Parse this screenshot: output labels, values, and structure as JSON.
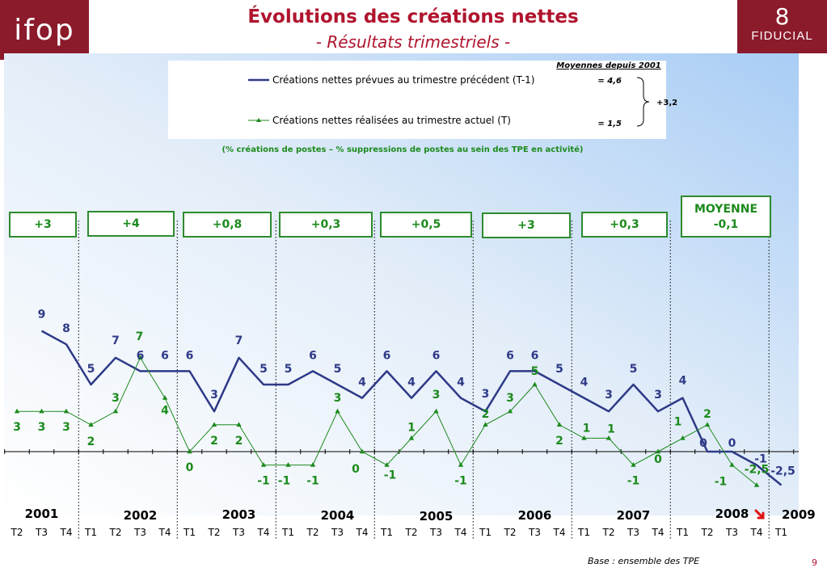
{
  "logos": {
    "left": "ifop",
    "right_mark": "8",
    "right_name": "FIDUCIAL"
  },
  "title": "Évolutions des créations nettes",
  "subtitle": "- Résultats trimestriels -",
  "footer": "Base : ensemble des TPE",
  "page_number": "9",
  "colors": {
    "brand": "#8b1a2b",
    "title": "#b0142d",
    "prevues": "#2e3a87",
    "realisees": "#1c8a1c",
    "box_border": "#2e8b2e"
  },
  "legend": {
    "header": "Moyennes depuis 2001",
    "entries": [
      {
        "label": "Créations nettes prévues au trimestre précédent (T-1)",
        "avg": "= 4,6"
      },
      {
        "label": "Créations nettes réalisées au trimestre actuel (T)",
        "avg": "= 1,5"
      }
    ],
    "diff": "+3,2"
  },
  "note": "(% créations de postes  – % suppressions de postes au sein des TPE en activité)",
  "chart_data": {
    "type": "line",
    "x": [
      "T2",
      "T3",
      "T4",
      "T1",
      "T2",
      "T3",
      "T4",
      "T1",
      "T2",
      "T3",
      "T4",
      "T1",
      "T2",
      "T3",
      "T4",
      "T1",
      "T2",
      "T3",
      "T4",
      "T1",
      "T2",
      "T3",
      "T4",
      "T1",
      "T2",
      "T3",
      "T4",
      "T1",
      "T2",
      "T3",
      "T4",
      "T1"
    ],
    "years": [
      "2001",
      "2002",
      "2003",
      "2004",
      "2005",
      "2006",
      "2007",
      "2008",
      "2009"
    ],
    "series": [
      {
        "name": "Créations nettes prévues au trimestre précédent (T-1)",
        "values": [
          null,
          9,
          8,
          5,
          7,
          6,
          6,
          6,
          3,
          7,
          5,
          5,
          6,
          5,
          4,
          6,
          4,
          6,
          4,
          3,
          6,
          6,
          5,
          4,
          3,
          5,
          3,
          4,
          0,
          0,
          -1,
          -2.5
        ],
        "labels": [
          "",
          "9",
          "8",
          "5",
          "7",
          "6",
          "6",
          "6",
          "3",
          "7",
          "5",
          "5",
          "6",
          "5",
          "4",
          "6",
          "4",
          "6",
          "4",
          "3",
          "6",
          "6",
          "5",
          "4",
          "3",
          "5",
          "3",
          "4",
          "0",
          "0",
          "-1",
          "-2,5"
        ]
      },
      {
        "name": "Créations nettes réalisées au trimestre actuel (T)",
        "values": [
          3,
          3,
          3,
          2,
          3,
          7,
          4,
          0,
          2,
          2,
          -1,
          -1,
          -1,
          3,
          0,
          -1,
          1,
          3,
          -1,
          2,
          3,
          5,
          2,
          1,
          1,
          -1,
          0,
          1,
          2,
          -1,
          -2.5,
          null
        ],
        "labels": [
          "3",
          "3",
          "3",
          "2",
          "3",
          "7",
          "4",
          "0",
          "2",
          "2",
          "-1",
          "-1",
          "-1",
          "3",
          "0",
          "-1",
          "1",
          "3",
          "-1",
          "2",
          "3",
          "5",
          "2",
          "1",
          "1",
          "-1",
          "0",
          "1",
          "2",
          "-1",
          "-2,5",
          ""
        ]
      }
    ],
    "gaps": [
      "+3",
      "+4",
      "+0,8",
      "+0,3",
      "+0,5",
      "+3",
      "+0,3"
    ],
    "average_box": {
      "title": "MOYENNE",
      "value": "-0,1"
    },
    "ylim": [
      -3,
      10
    ],
    "grid": false,
    "legend_position": "top-center"
  }
}
